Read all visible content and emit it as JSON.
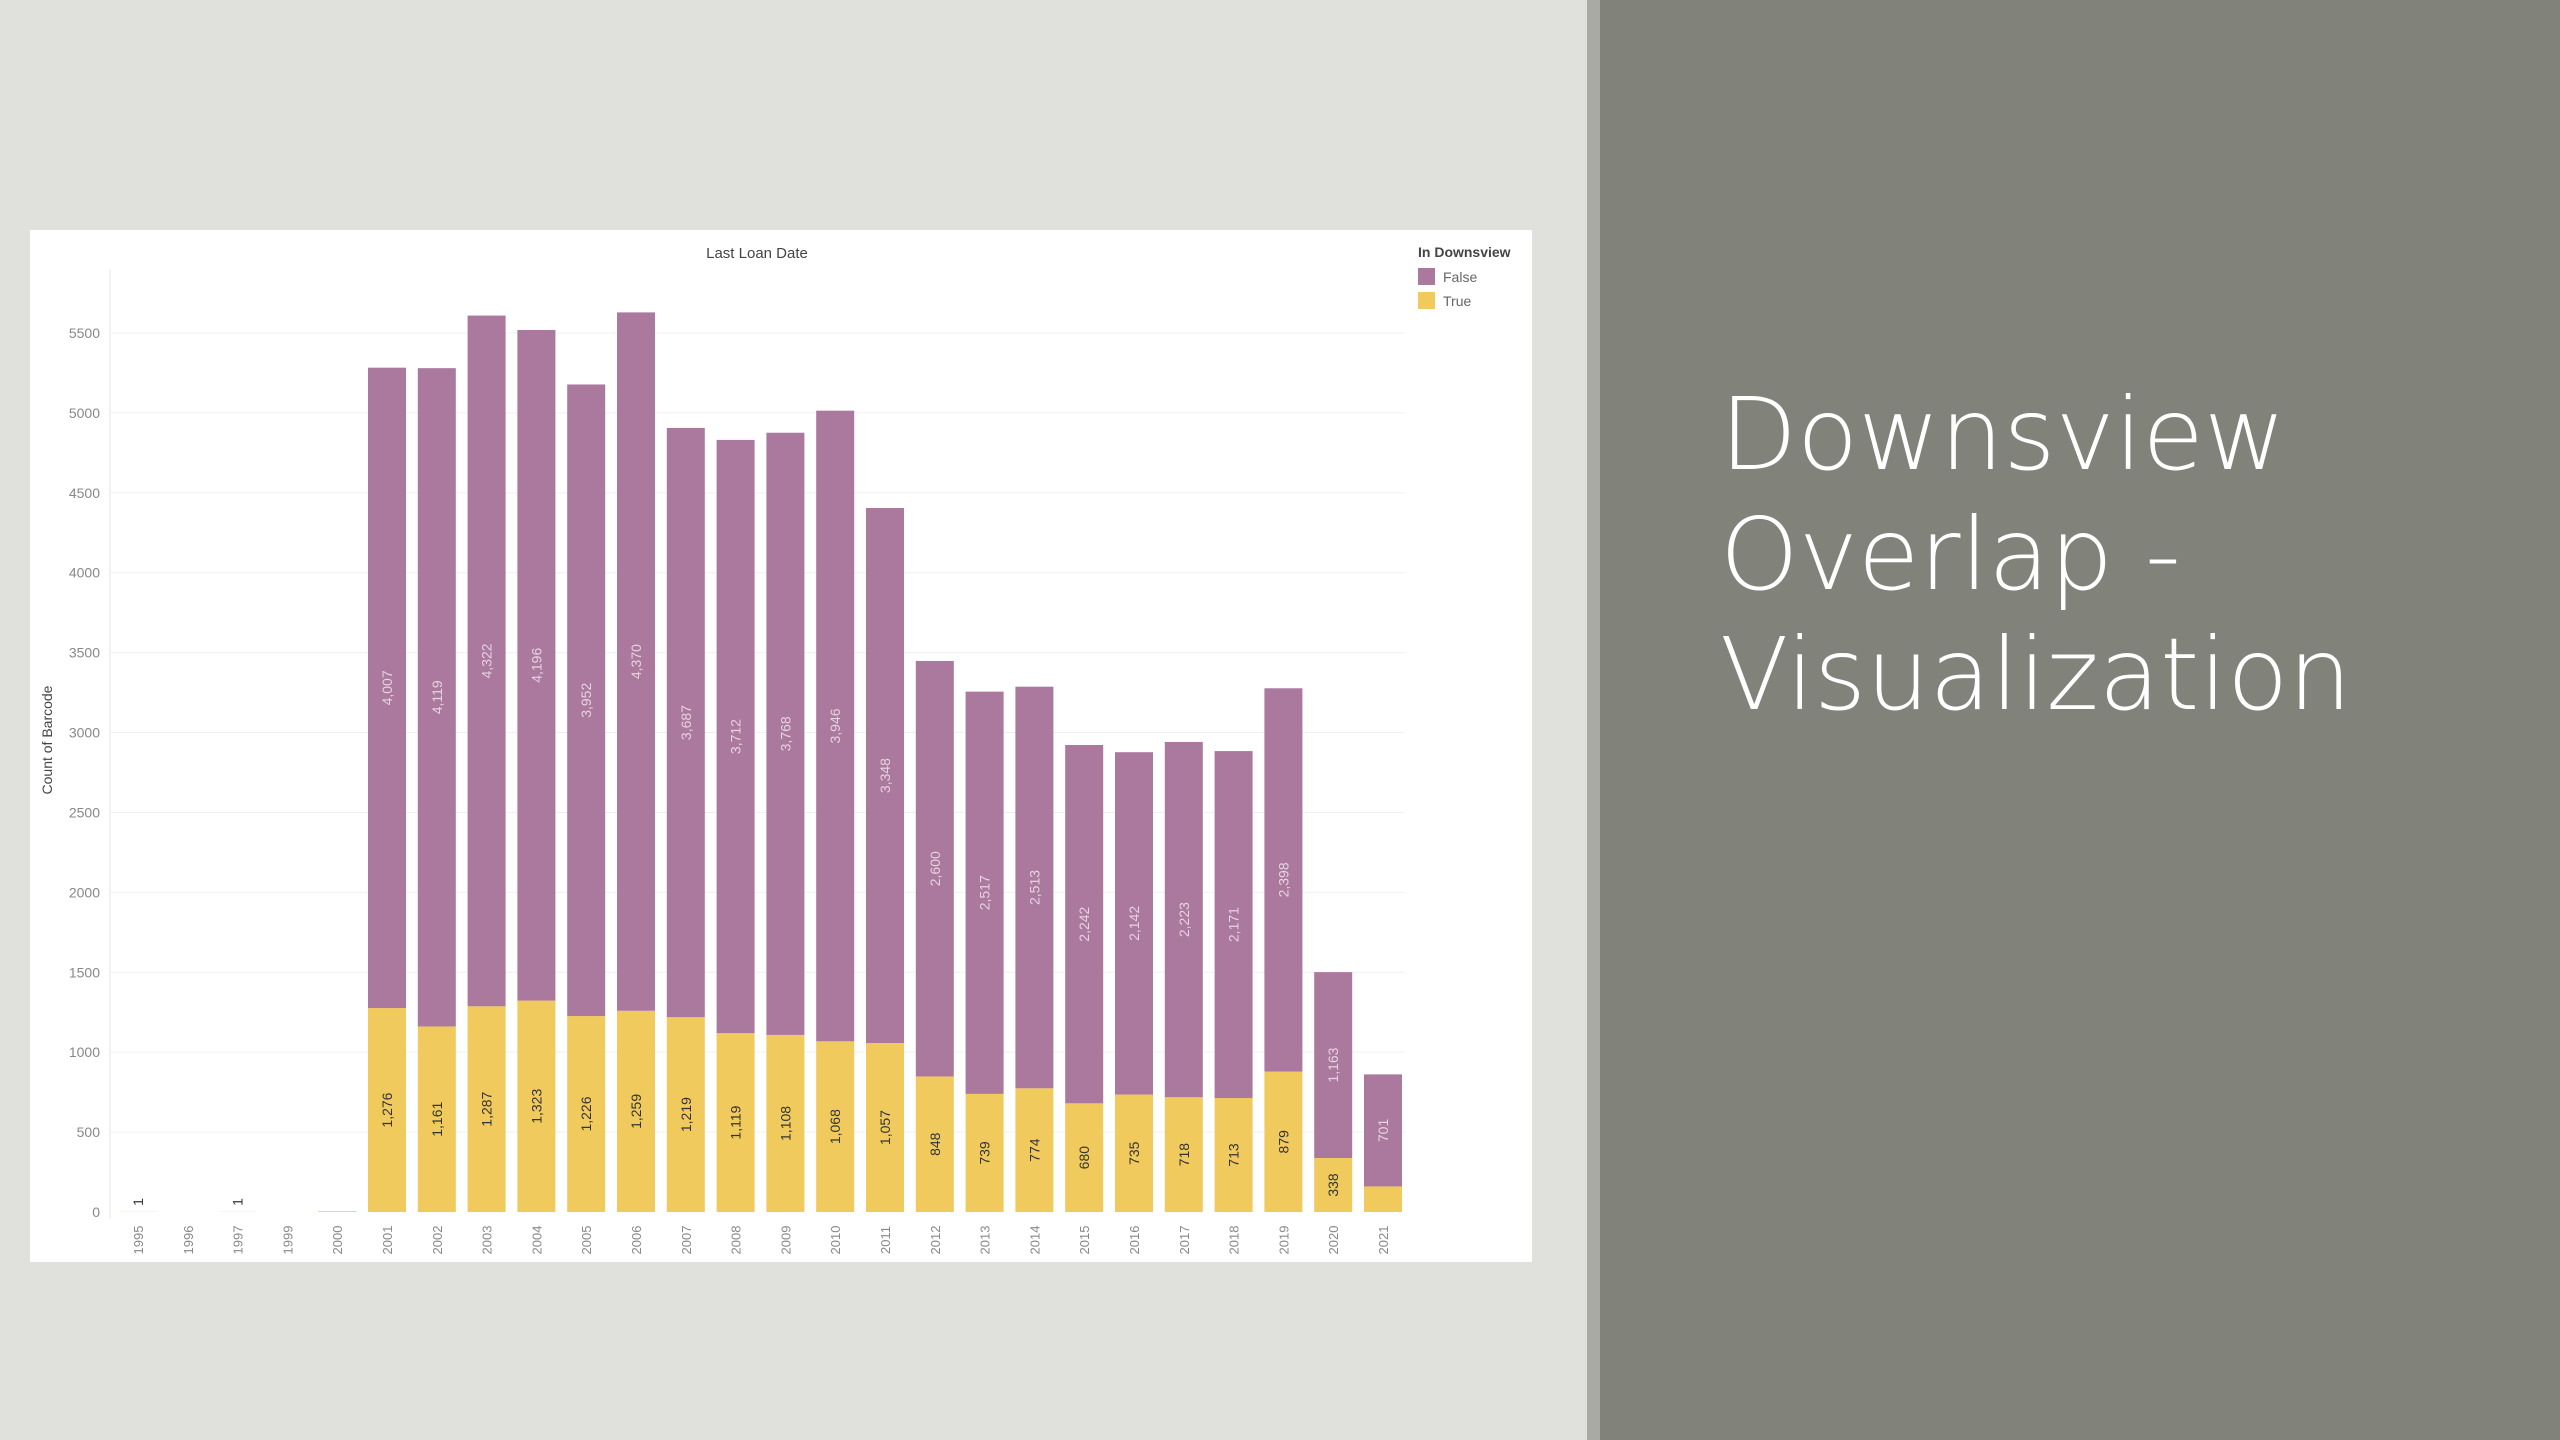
{
  "slide": {
    "title_lines": [
      "Downsview",
      "Overlap -",
      "Visualization"
    ]
  },
  "colors": {
    "false_series": "#ab789e",
    "true_series": "#f0ca5c",
    "right_panel": "#81827a",
    "left_panel": "#e0e1dd"
  },
  "chart_data": {
    "type": "bar",
    "stacked": true,
    "title": "Last Loan Date",
    "xlabel": "",
    "ylabel": "Count of Barcode",
    "ylim": [
      0,
      5800
    ],
    "yticks": [
      0,
      500,
      1000,
      1500,
      2000,
      2500,
      3000,
      3500,
      4000,
      4500,
      5000,
      5500
    ],
    "grid": true,
    "legend": {
      "title": "In Downsview",
      "placement": "top-right",
      "entries": [
        "False",
        "True"
      ]
    },
    "categories": [
      "1995",
      "1996",
      "1997",
      "1999",
      "2000",
      "2001",
      "2002",
      "2003",
      "2004",
      "2005",
      "2006",
      "2007",
      "2008",
      "2009",
      "2010",
      "2011",
      "2012",
      "2013",
      "2014",
      "2015",
      "2016",
      "2017",
      "2018",
      "2019",
      "2020",
      "2021"
    ],
    "series": [
      {
        "name": "True",
        "values": [
          1,
          0,
          1,
          0,
          5,
          1276,
          1161,
          1287,
          1323,
          1226,
          1259,
          1219,
          1119,
          1108,
          1068,
          1057,
          848,
          739,
          774,
          680,
          735,
          718,
          713,
          879,
          338,
          160
        ],
        "labels": [
          "1",
          "",
          "1",
          "",
          "",
          "1,276",
          "1,161",
          "1,287",
          "1,323",
          "1,226",
          "1,259",
          "1,219",
          "1,119",
          "1,108",
          "1,068",
          "1,057",
          "848",
          "739",
          "774",
          "680",
          "735",
          "718",
          "713",
          "879",
          "338",
          ""
        ]
      },
      {
        "name": "False",
        "values": [
          0,
          0,
          0,
          0,
          0,
          4007,
          4119,
          4322,
          4196,
          3952,
          4370,
          3687,
          3712,
          3768,
          3946,
          3348,
          2600,
          2517,
          2513,
          2242,
          2142,
          2223,
          2171,
          2398,
          1163,
          701
        ],
        "labels": [
          "",
          "",
          "",
          "",
          "",
          "4,007",
          "4,119",
          "4,322",
          "4,196",
          "3,952",
          "4,370",
          "3,687",
          "3,712",
          "3,768",
          "3,946",
          "3,348",
          "2,600",
          "2,517",
          "2,513",
          "2,242",
          "2,142",
          "2,223",
          "2,171",
          "2,398",
          "1,163",
          "701"
        ]
      }
    ]
  }
}
